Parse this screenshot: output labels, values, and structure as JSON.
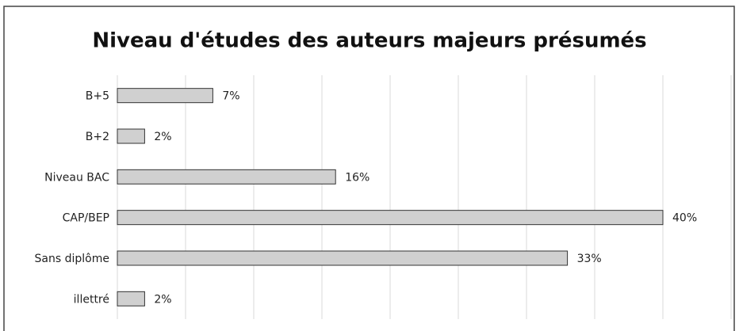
{
  "chart_data": {
    "type": "barh",
    "title": "Niveau d'études des auteurs majeurs présumés",
    "categories": [
      "B+5",
      "B+2",
      "Niveau BAC",
      "CAP/BEP",
      "Sans diplôme",
      "illettré"
    ],
    "values": [
      7,
      2,
      16,
      40,
      33,
      2
    ],
    "value_labels": [
      "7%",
      "2%",
      "16%",
      "40%",
      "33%",
      "2%"
    ],
    "color": "#d0d0d0",
    "xlim": [
      0,
      45
    ],
    "xticks": [
      0,
      5,
      10,
      15,
      20,
      25,
      30,
      35,
      40,
      45
    ],
    "grid": true
  }
}
